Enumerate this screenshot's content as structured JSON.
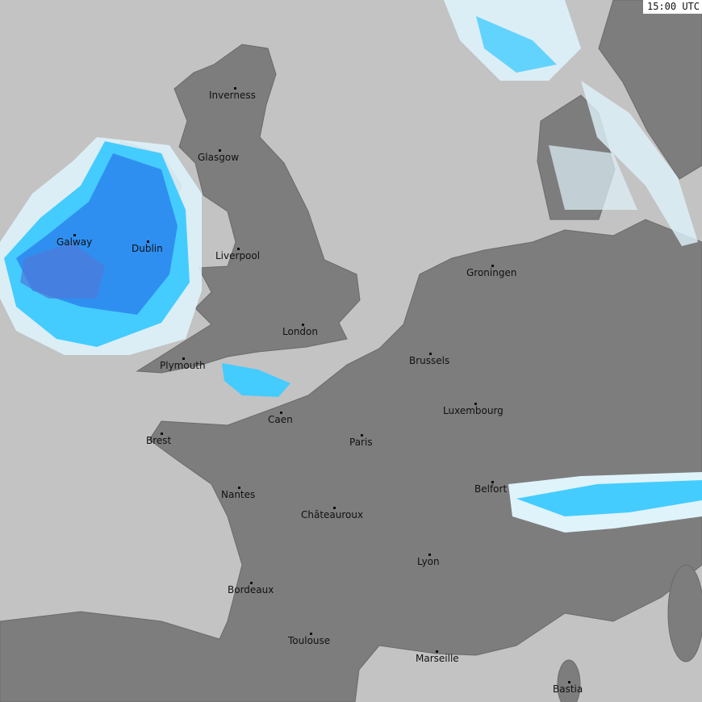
{
  "timestamp": "15:00 UTC",
  "colors": {
    "sea": "#c3c3c3",
    "land": "#7d7d7d",
    "precip_light": "#dff3fb",
    "precip_cyan": "#44ccff",
    "precip_blue": "#2f8ff0",
    "precip_dark": "#4f79d8"
  },
  "cities": [
    {
      "name": "Inverness"
    },
    {
      "name": "Glasgow"
    },
    {
      "name": "Galway"
    },
    {
      "name": "Dublin"
    },
    {
      "name": "Liverpool"
    },
    {
      "name": "London"
    },
    {
      "name": "Plymouth"
    },
    {
      "name": "Caen"
    },
    {
      "name": "Brest"
    },
    {
      "name": "Paris"
    },
    {
      "name": "Nantes"
    },
    {
      "name": "Châteauroux"
    },
    {
      "name": "Bordeaux"
    },
    {
      "name": "Toulouse"
    },
    {
      "name": "Lyon"
    },
    {
      "name": "Marseille"
    },
    {
      "name": "Bastia"
    },
    {
      "name": "Brussels"
    },
    {
      "name": "Luxembourg"
    },
    {
      "name": "Groningen"
    },
    {
      "name": "Belfort"
    }
  ]
}
